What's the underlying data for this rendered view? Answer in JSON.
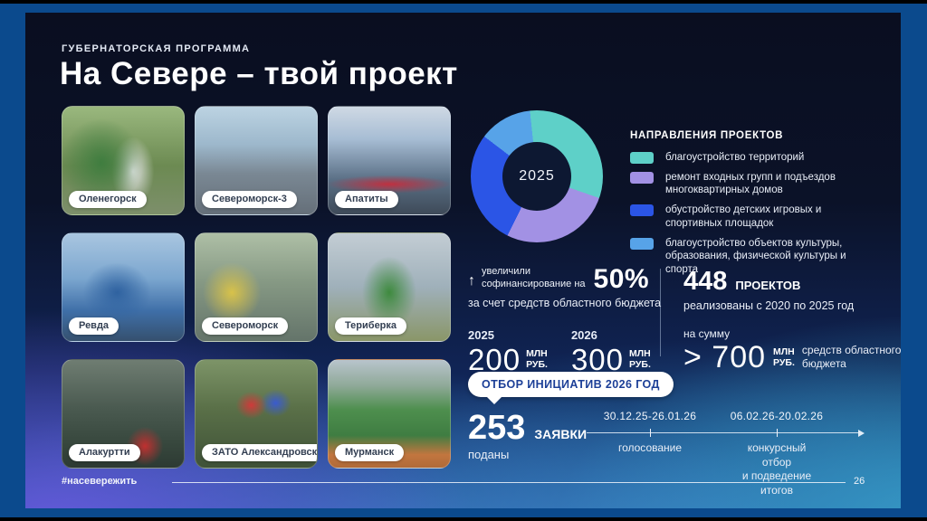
{
  "frame": {
    "hashtag": "#насевережить",
    "page_number": "26"
  },
  "header": {
    "kicker": "ГУБЕРНАТОРСКАЯ ПРОГРАММА",
    "title": "На Севере – твой проект"
  },
  "photos": [
    {
      "label": "Оленегорск"
    },
    {
      "label": "Североморск-3"
    },
    {
      "label": "Апатиты"
    },
    {
      "label": "Ревда"
    },
    {
      "label": "Североморск"
    },
    {
      "label": "Териберка"
    },
    {
      "label": "Алакуртти"
    },
    {
      "label": "ЗАТО Александровск"
    },
    {
      "label": "Мурманск"
    }
  ],
  "chart_data": {
    "type": "pie",
    "style": "donut",
    "center_label": "2025",
    "legend_title": "НАПРАВЛЕНИЯ ПРОЕКТОВ",
    "legend_position": "right",
    "start_angle_deg": -6,
    "segments": [
      {
        "label": "благоустройство территорий",
        "value": 32,
        "color": "#5ed0c8"
      },
      {
        "label": "ремонт входных групп и подъездов многоквартирных домов",
        "value": 27,
        "color": "#a291e4"
      },
      {
        "label": "обустройство детских игровых и спортивных площадок",
        "value": 28,
        "color": "#2b55e6"
      },
      {
        "label": "благоустройство объектов культуры, образования, физической культуры и спорта",
        "value": 13,
        "color": "#57a3e8"
      }
    ]
  },
  "funding": {
    "increase_icon": "↑",
    "increase_line1": "увеличили",
    "increase_line2": "софинансирование на",
    "increase_percent": "50%",
    "increase_note": "за счет средств областного бюджета",
    "years": [
      {
        "year": "2025",
        "amount": "200",
        "unit": "МЛН\nРУБ."
      },
      {
        "year": "2026",
        "amount": "300",
        "unit": "МЛН\nРУБ."
      }
    ]
  },
  "projects": {
    "count": "448",
    "count_unit": "ПРОЕКТОВ",
    "note": "реализованы с 2020 по 2025 год",
    "sum_label": "на сумму",
    "sum_value": "> 700",
    "sum_unit": "МЛН\nРУБ.",
    "sum_note": "средств областного\nбюджета"
  },
  "selection": {
    "badge": "ОТБОР ИНИЦИАТИВ 2026 ГОД",
    "applications_count": "253",
    "applications_unit": "ЗАЯВКИ",
    "applications_note": "поданы",
    "timeline": [
      {
        "dates": "30.12.25-26.01.26",
        "label": "голосование"
      },
      {
        "dates": "06.02.26-20.02.26",
        "label": "конкурсный отбор\nи подведение итогов"
      }
    ]
  }
}
